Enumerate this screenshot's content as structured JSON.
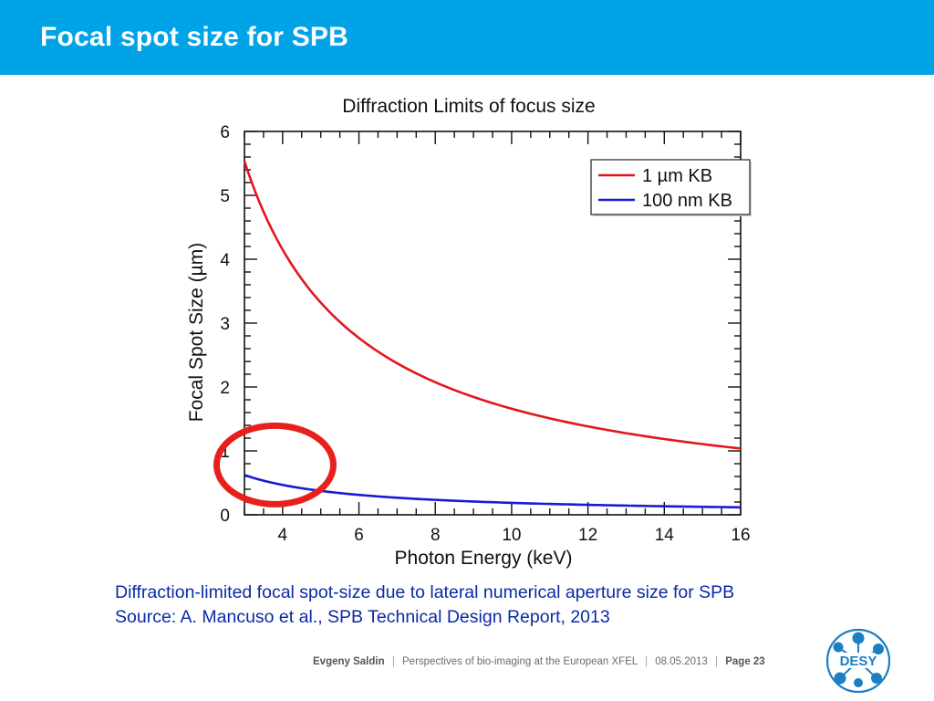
{
  "slide": {
    "title": "Focal spot size for SPB",
    "caption_line1": "Diffraction-limited focal spot-size due to lateral numerical aperture size for SPB",
    "caption_line2": "Source: A. Mancuso et al., SPB Technical Design Report, 2013",
    "footer": {
      "author": "Evgeny Saldin",
      "separator": "|",
      "talk": "Perspectives of bio-imaging at the European XFEL",
      "date": "08.05.2013",
      "page": "Page 23"
    },
    "logo_text": "DESY",
    "colors": {
      "header": "#00a3e6",
      "caption": "#0a2aa8",
      "highlight_circle": "#e8201c"
    }
  },
  "chart_data": {
    "type": "line",
    "title": "Diffraction Limits of focus size",
    "xlabel": "Photon Energy (keV)",
    "ylabel": "Focal Spot Size (µm)",
    "xlim": [
      3,
      16
    ],
    "ylim": [
      0,
      6
    ],
    "xticks": [
      4,
      6,
      8,
      10,
      12,
      14,
      16
    ],
    "yticks": [
      0,
      1,
      2,
      3,
      4,
      5,
      6
    ],
    "legend_position": "top-right",
    "grid": false,
    "series": [
      {
        "name": "1 µm KB",
        "color": "#e3161b",
        "x": [
          3,
          3.5,
          4,
          5,
          6,
          8,
          10,
          12,
          14,
          16
        ],
        "y": [
          5.53,
          4.74,
          4.15,
          3.32,
          2.77,
          2.07,
          1.66,
          1.38,
          1.19,
          1.04
        ]
      },
      {
        "name": "100 nm KB",
        "color": "#1a1ad6",
        "x": [
          3,
          3.5,
          4,
          5,
          6,
          8,
          10,
          12,
          14,
          16
        ],
        "y": [
          0.62,
          0.53,
          0.47,
          0.37,
          0.31,
          0.23,
          0.19,
          0.16,
          0.13,
          0.12
        ]
      }
    ],
    "annotation": {
      "shape": "ellipse",
      "center": [
        3.8,
        0.78
      ],
      "note": "highlighted region"
    }
  }
}
